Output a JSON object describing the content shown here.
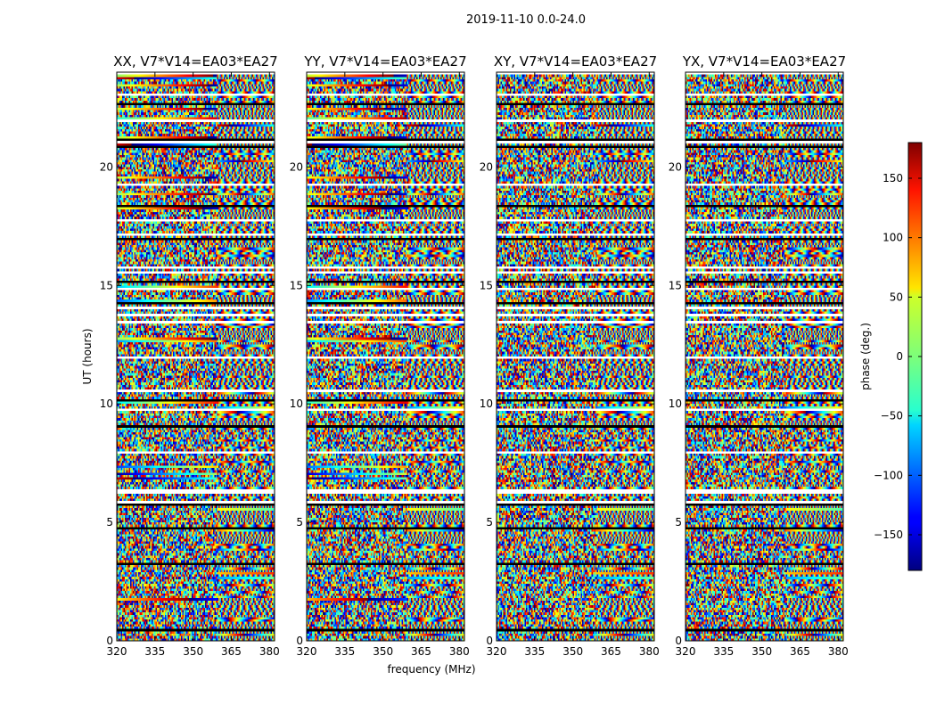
{
  "chart_data": {
    "type": "heatmap",
    "suptitle": "2019-11-10 0.0-24.0",
    "xlabel": "frequency (MHz)",
    "ylabel": "UT (hours)",
    "xlim": [
      320,
      382
    ],
    "ylim": [
      0,
      24
    ],
    "xticks": [
      "320",
      "335",
      "350",
      "365",
      "380"
    ],
    "yticks": [
      "0",
      "5",
      "10",
      "15",
      "20"
    ],
    "panels": [
      {
        "title": "XX, V7*V14=EA03*EA27",
        "pol": "XX"
      },
      {
        "title": "YY, V7*V14=EA03*EA27",
        "pol": "YY"
      },
      {
        "title": "XY, V7*V14=EA03*EA27",
        "pol": "XY"
      },
      {
        "title": "YX, V7*V14=EA03*EA27",
        "pol": "YX"
      }
    ],
    "colorbar": {
      "label": "phase (deg.)",
      "range": [
        -180,
        180
      ],
      "colormap": "jet",
      "ticks": [
        "−150",
        "−100",
        "−50",
        "0",
        "50",
        "100",
        "150"
      ],
      "tick_values": [
        -150,
        -100,
        -50,
        0,
        50,
        100,
        150
      ]
    }
  }
}
